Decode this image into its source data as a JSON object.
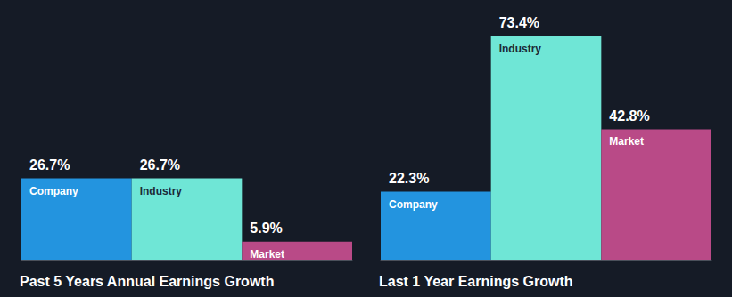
{
  "chart_data": [
    {
      "type": "bar",
      "title": "Past 5 Years Annual Earnings Growth",
      "categories": [
        "Company",
        "Industry",
        "Market"
      ],
      "values": [
        26.7,
        26.7,
        5.9
      ],
      "value_labels": [
        "26.7%",
        "26.7%",
        "5.9%"
      ],
      "colors": [
        "#2394df",
        "#6fe6d6",
        "#b94a87"
      ],
      "ylim": [
        0,
        80
      ],
      "grid": false,
      "data_labels": true,
      "tick_labels": false
    },
    {
      "type": "bar",
      "title": "Last 1 Year Earnings Growth",
      "categories": [
        "Company",
        "Industry",
        "Market"
      ],
      "values": [
        22.3,
        73.4,
        42.8
      ],
      "value_labels": [
        "22.3%",
        "73.4%",
        "42.8%"
      ],
      "colors": [
        "#2394df",
        "#6fe6d6",
        "#b94a87"
      ],
      "ylim": [
        0,
        80
      ],
      "grid": false,
      "data_labels": true,
      "tick_labels": false
    }
  ]
}
